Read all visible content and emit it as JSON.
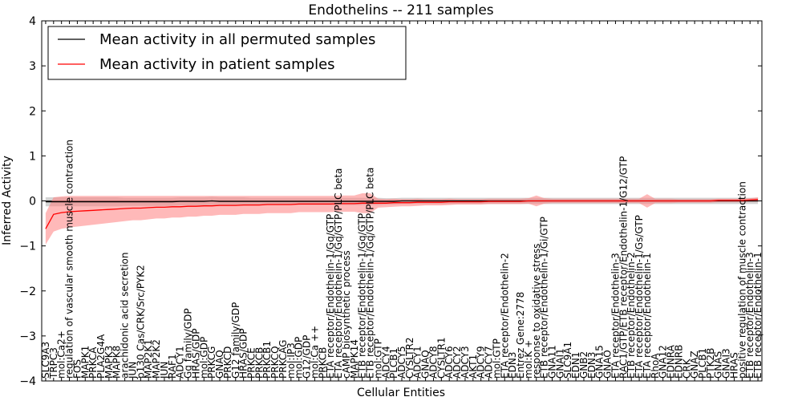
{
  "chart_data": {
    "type": "line",
    "title": "Endothelins -- 211 samples",
    "xlabel": "Cellular Entities",
    "ylabel": "Inferred Activity",
    "ylim": [
      -4,
      4
    ],
    "yticks": [
      4,
      3,
      2,
      1,
      0,
      -1,
      -2,
      -3,
      -4
    ],
    "ytick_labels": [
      "4",
      "3",
      "2",
      "1",
      "0",
      "−1",
      "−2",
      "−3",
      "−4"
    ],
    "legend_position": "top-left",
    "categories": [
      "SLC9A3",
      "TRPC3",
      "mol:Ca2+",
      "regulation of vascular smooth muscle contraction",
      "FOS",
      "MAPK1",
      "PRKCA",
      "PLA2G4A",
      "MAPK3",
      "MAPK8",
      "arachidonic acid secretion",
      "JUN",
      "p130 Cas/CRK/Src/PYK2",
      "MAP2K1",
      "MAP2K2",
      "JUN",
      "RAF1",
      "ADCY1",
      "Gq family/GDP",
      "HRAS/GDP",
      "mol:GDP",
      "PRKCG",
      "GNAQ",
      "PRKCD",
      "G12 family/GDP",
      "HRAS/GDP",
      "PRKCE",
      "PRKCB",
      "PRKCB1",
      "PRKCQ",
      "PRKCAG",
      "mol:IP3",
      "mol:GDP",
      "G12/GDP",
      "mol:Ca ++",
      "PRKCB",
      "ETA receptor/Endothelin-1/Gq/GTP",
      "ETA receptor/Endothelin-1/Gq/GTP/PLC beta",
      "cAMP biosynthetic process",
      "MAPK14",
      "ETB receptor/Endothelin-1/Gq/GTP",
      "ETB receptor/Endothelin-1/Gq/GTP/PLC beta",
      "mol:GTP",
      "ADCY4",
      "PLCB1",
      "ADCY5",
      "CYSLTR2",
      "ADCY1",
      "GNAQ",
      "ADCY8",
      "CYSLTR1",
      "ADCY6",
      "ADCY2",
      "ADCY3",
      "AKT1",
      "ADCY9",
      "ADCY7",
      "mol:GTP",
      "ETA receptor/Endothelin-2",
      "EDN3",
      "Entrez Gene:2778",
      "mol:K +",
      "response to oxidative stress",
      "ETB receptor/Endothelin-1/Gi/GTP",
      "GNA11",
      "GNAI1",
      "SLC9A1",
      "EDN1",
      "GNB2",
      "EDN3",
      "GNA15",
      "GNAO",
      "ETA receptor/Endothelin-3",
      "RAC1/GTP/ETB receptor/Endothelin-1/G12/GTP",
      "ETB receptor/Endothelin-2",
      "ETA receptor/Endothelin-1/Gs/GTP",
      "ETA receptor/Endothelin-1",
      "RhoA",
      "GNA12",
      "EDNRA",
      "EDNRB",
      "CRK",
      "GNAZ",
      "PLCB1",
      "PTK2B",
      "GNAS",
      "GNAI3",
      "HRAS",
      "positive regulation of muscle contraction",
      "ETB receptor/Endothelin-3",
      "ETB receptor/Endothelin-1"
    ],
    "series": [
      {
        "name": "Mean activity in all permuted samples",
        "color": "#000000",
        "band_color": "#808080",
        "values": [
          -0.02,
          -0.02,
          -0.02,
          -0.02,
          -0.02,
          -0.02,
          -0.02,
          -0.02,
          -0.02,
          -0.02,
          -0.02,
          -0.02,
          -0.02,
          -0.02,
          -0.02,
          -0.02,
          -0.02,
          -0.01,
          -0.01,
          -0.01,
          -0.01,
          0.0,
          -0.01,
          -0.01,
          -0.01,
          -0.01,
          -0.01,
          -0.01,
          -0.01,
          -0.01,
          -0.01,
          -0.01,
          -0.01,
          -0.01,
          -0.01,
          -0.01,
          -0.01,
          -0.01,
          -0.01,
          -0.01,
          -0.01,
          -0.01,
          -0.01,
          -0.01,
          -0.01,
          0.0,
          0.0,
          0.0,
          0.0,
          0.0,
          0.0,
          0.0,
          0.0,
          0.0,
          0.0,
          0.0,
          0.0,
          0.0,
          0.0,
          0.0,
          0.0,
          0.0,
          0.0,
          0.0,
          0.0,
          0.0,
          0.0,
          0.0,
          0.0,
          0.0,
          0.0,
          0.0,
          0.0,
          0.0,
          0.0,
          0.0,
          0.0,
          0.0,
          0.0,
          0.0,
          0.0,
          0.0,
          0.0,
          0.0,
          0.0,
          0.0,
          0.0,
          0.0,
          0.0,
          0.0,
          0.0
        ],
        "band_half_width": [
          0.1,
          0.1,
          0.1,
          0.1,
          0.1,
          0.1,
          0.1,
          0.1,
          0.1,
          0.1,
          0.09,
          0.09,
          0.09,
          0.09,
          0.09,
          0.09,
          0.09,
          0.09,
          0.09,
          0.09,
          0.09,
          0.09,
          0.09,
          0.09,
          0.09,
          0.09,
          0.08,
          0.08,
          0.08,
          0.08,
          0.08,
          0.08,
          0.08,
          0.08,
          0.08,
          0.08,
          0.08,
          0.08,
          0.08,
          0.08,
          0.08,
          0.08,
          0.08,
          0.07,
          0.07,
          0.07,
          0.07,
          0.07,
          0.07,
          0.07,
          0.07,
          0.07,
          0.07,
          0.07,
          0.07,
          0.07,
          0.07,
          0.07,
          0.07,
          0.07,
          0.07,
          0.07,
          0.07,
          0.07,
          0.07,
          0.07,
          0.07,
          0.07,
          0.07,
          0.07,
          0.07,
          0.07,
          0.07,
          0.07,
          0.07,
          0.07,
          0.07,
          0.07,
          0.07,
          0.07,
          0.07,
          0.07,
          0.07,
          0.07,
          0.07,
          0.07,
          0.07,
          0.07,
          0.07,
          0.07,
          0.07
        ]
      },
      {
        "name": "Mean activity in patient samples",
        "color": "#ff0000",
        "band_color": "#ff8080",
        "values": [
          -0.62,
          -0.3,
          -0.26,
          -0.24,
          -0.23,
          -0.22,
          -0.21,
          -0.2,
          -0.19,
          -0.18,
          -0.17,
          -0.16,
          -0.16,
          -0.15,
          -0.14,
          -0.14,
          -0.13,
          -0.13,
          -0.12,
          -0.12,
          -0.11,
          -0.11,
          -0.1,
          -0.1,
          -0.1,
          -0.09,
          -0.09,
          -0.09,
          -0.08,
          -0.08,
          -0.08,
          -0.08,
          -0.07,
          -0.07,
          -0.07,
          -0.07,
          -0.07,
          -0.06,
          -0.06,
          -0.06,
          -0.05,
          -0.05,
          -0.05,
          -0.05,
          -0.04,
          -0.04,
          -0.04,
          -0.03,
          -0.03,
          -0.03,
          -0.03,
          -0.02,
          -0.02,
          -0.02,
          -0.02,
          -0.02,
          -0.01,
          -0.01,
          -0.01,
          -0.01,
          -0.01,
          0.0,
          0.0,
          0.0,
          0.0,
          0.0,
          0.0,
          0.0,
          0.0,
          0.0,
          0.0,
          0.0,
          0.0,
          0.0,
          0.0,
          0.0,
          0.0,
          0.0,
          0.0,
          0.0,
          0.0,
          0.0,
          0.0,
          0.0,
          0.0,
          0.01,
          0.01,
          0.01,
          0.01,
          0.02,
          0.03
        ],
        "band_half_width": [
          0.35,
          0.38,
          0.36,
          0.35,
          0.34,
          0.33,
          0.32,
          0.31,
          0.3,
          0.29,
          0.28,
          0.27,
          0.27,
          0.26,
          0.25,
          0.25,
          0.24,
          0.24,
          0.23,
          0.23,
          0.22,
          0.22,
          0.21,
          0.21,
          0.21,
          0.2,
          0.2,
          0.2,
          0.19,
          0.19,
          0.19,
          0.19,
          0.18,
          0.18,
          0.18,
          0.18,
          0.18,
          0.18,
          0.18,
          0.18,
          0.22,
          0.22,
          0.1,
          0.09,
          0.09,
          0.08,
          0.08,
          0.08,
          0.07,
          0.07,
          0.07,
          0.07,
          0.06,
          0.06,
          0.06,
          0.06,
          0.06,
          0.06,
          0.06,
          0.06,
          0.06,
          0.06,
          0.12,
          0.06,
          0.05,
          0.05,
          0.05,
          0.05,
          0.05,
          0.05,
          0.05,
          0.05,
          0.05,
          0.05,
          0.05,
          0.05,
          0.15,
          0.05,
          0.05,
          0.05,
          0.04,
          0.04,
          0.04,
          0.04,
          0.04,
          0.04,
          0.04,
          0.04,
          0.04,
          0.04,
          0.05
        ]
      }
    ]
  }
}
